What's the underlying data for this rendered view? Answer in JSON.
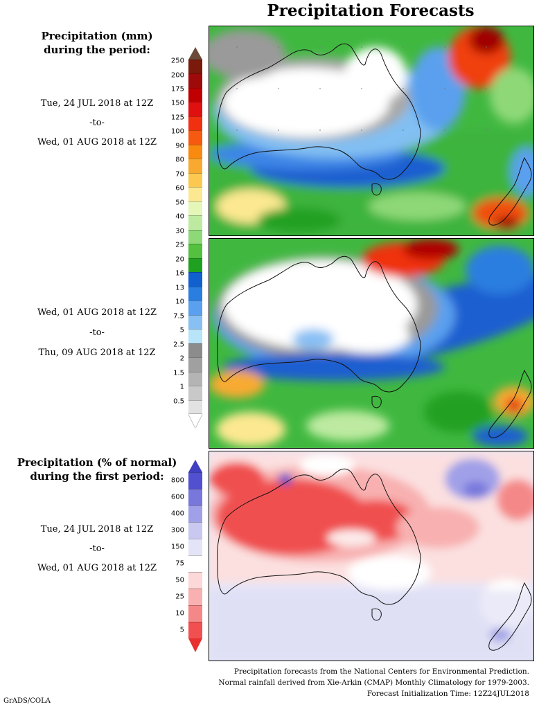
{
  "title": "Precipitation Forecasts",
  "legend1": {
    "line1": "Precipitation (mm)",
    "line2": "during the period:"
  },
  "legend2": {
    "line1": "Precipitation (% of normal)",
    "line2": "during the first period:"
  },
  "periods": [
    {
      "start": "Tue, 24 JUL 2018 at 12Z",
      "sep": "-to-",
      "end": "Wed, 01 AUG 2018 at 12Z"
    },
    {
      "start": "Wed, 01 AUG 2018 at 12Z",
      "sep": "-to-",
      "end": "Thu, 09 AUG 2018 at 12Z"
    },
    {
      "start": "Tue, 24 JUL 2018 at 12Z",
      "sep": "-to-",
      "end": "Wed, 01 AUG 2018 at 12Z"
    }
  ],
  "precip_scale": {
    "labels": [
      "250",
      "200",
      "175",
      "150",
      "125",
      "100",
      "90",
      "80",
      "70",
      "60",
      "50",
      "40",
      "30",
      "25",
      "20",
      "16",
      "13",
      "10",
      "7.5",
      "5",
      "2.5",
      "2",
      "1.5",
      "1",
      "0.5"
    ],
    "colors": [
      "#7a1a0a",
      "#9e0a0a",
      "#c00000",
      "#e01010",
      "#f03010",
      "#f55a10",
      "#f88a10",
      "#f8aa30",
      "#fcc850",
      "#fce890",
      "#e4f6b8",
      "#bdeaa0",
      "#8ed878",
      "#54c040",
      "#20a020",
      "#1060d0",
      "#2a7ee0",
      "#5aa0ee",
      "#88c0f4",
      "#b8e4fa",
      "#8c8c8c",
      "#a0a0a0",
      "#b4b4b4",
      "#c8c8c8",
      "#e2e2e2"
    ],
    "top_color": "#6a4a3a"
  },
  "pct_scale": {
    "labels": [
      "800",
      "600",
      "400",
      "300",
      "150",
      "75",
      "50",
      "25",
      "10",
      "5"
    ],
    "colors": [
      "#5050d0",
      "#7878dc",
      "#a0a0e8",
      "#c8c8f0",
      "#e4e4f8",
      "#ffffff",
      "#fcd8d8",
      "#f8b0b0",
      "#f48888",
      "#f05050"
    ],
    "top_color": "#4040c0",
    "bottom_color": "#e83030"
  },
  "footer": {
    "line1": "Precipitation forecasts from the National Centers for Environmental Prediction.",
    "line2": "Normal rainfall derived from Xie-Arkin (CMAP) Monthly Climatology for 1979-2003.",
    "line3": "Forecast Initialization Time: 12Z24JUL2018"
  },
  "credit": "GrADS/COLA"
}
